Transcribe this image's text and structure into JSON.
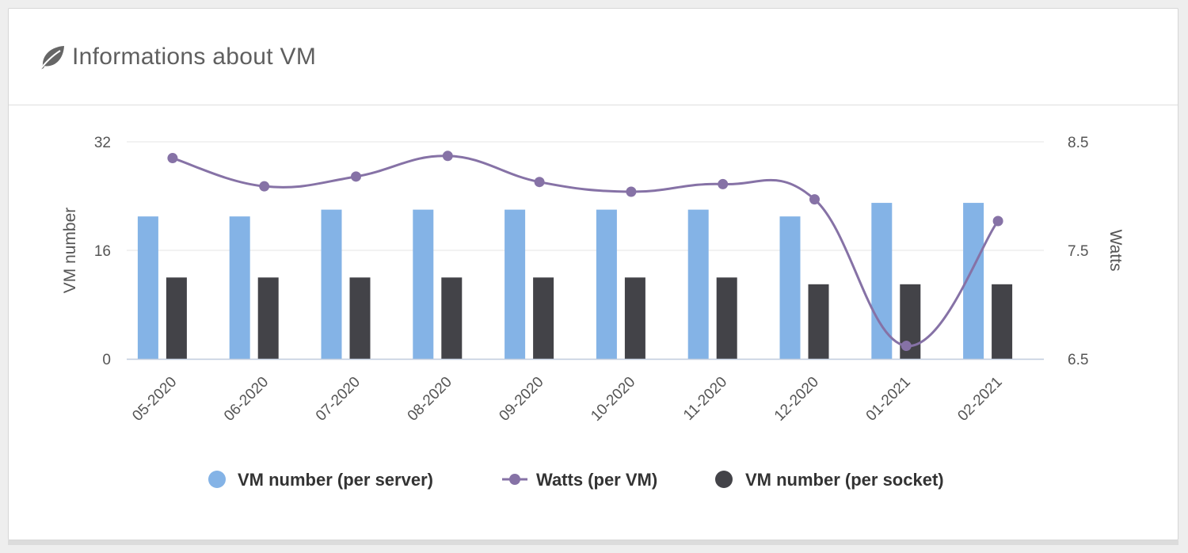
{
  "card": {
    "title": "Informations about VM",
    "icon": "leaf-icon"
  },
  "colors": {
    "per_server": "#84b3e6",
    "watts": "#8672a6",
    "per_socket": "#434348",
    "grid": "#e6e6e6"
  },
  "chart_data": {
    "type": "bar",
    "categories": [
      "05-2020",
      "06-2020",
      "07-2020",
      "08-2020",
      "09-2020",
      "10-2020",
      "11-2020",
      "12-2020",
      "01-2021",
      "02-2021"
    ],
    "series": [
      {
        "name": "VM number (per server)",
        "type": "bar",
        "axis": "left",
        "values": [
          21,
          21,
          22,
          22,
          22,
          22,
          22,
          21,
          23,
          23
        ]
      },
      {
        "name": "Watts (per VM)",
        "type": "line",
        "axis": "right",
        "values": [
          8.35,
          8.09,
          8.18,
          8.37,
          8.13,
          8.04,
          8.11,
          7.97,
          6.62,
          7.77
        ]
      },
      {
        "name": "VM number (per socket)",
        "type": "bar",
        "axis": "left",
        "values": [
          12,
          12,
          12,
          12,
          12,
          12,
          12,
          11,
          11,
          11
        ]
      }
    ],
    "y_left": {
      "label": "VM number",
      "ticks": [
        0,
        16,
        32
      ],
      "ylim": [
        0,
        32
      ]
    },
    "y_right": {
      "label": "Watts",
      "ticks": [
        "6.5",
        "7.5",
        "8.5"
      ],
      "ylim": [
        6.5,
        8.5
      ]
    },
    "grid": true,
    "legend": "bottom-center"
  }
}
